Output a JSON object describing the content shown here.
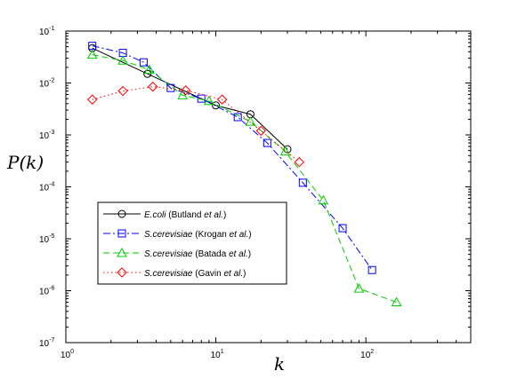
{
  "chart_data": {
    "type": "line",
    "xscale": "log",
    "yscale": "log",
    "xlim": [
      1,
      500
    ],
    "ylim": [
      1e-07,
      0.1
    ],
    "grid": false,
    "legend_position": "lower-left",
    "xlabel": "k",
    "ylabel": "P(k)",
    "x_ticks": [
      {
        "value": 1,
        "base": "10",
        "exp": "0"
      },
      {
        "value": 10,
        "base": "10",
        "exp": "1"
      },
      {
        "value": 100,
        "base": "10",
        "exp": "2"
      }
    ],
    "y_ticks": [
      {
        "value": 1e-07,
        "base": "10",
        "exp": "-7"
      },
      {
        "value": 1e-06,
        "base": "10",
        "exp": "-6"
      },
      {
        "value": 1e-05,
        "base": "10",
        "exp": "-5"
      },
      {
        "value": 0.0001,
        "base": "10",
        "exp": "-4"
      },
      {
        "value": 0.001,
        "base": "10",
        "exp": "-3"
      },
      {
        "value": 0.01,
        "base": "10",
        "exp": "-2"
      },
      {
        "value": 0.1,
        "base": "10",
        "exp": "-1"
      }
    ],
    "series": [
      {
        "legend": {
          "organism": "E.coli",
          "source": "(Butland",
          "etal": "et al.",
          "close": ")"
        },
        "color": "#000000",
        "marker": "circle",
        "dash": "",
        "x": [
          1.5,
          3.5,
          10,
          17,
          30
        ],
        "y": [
          0.047,
          0.015,
          0.0037,
          0.0025,
          0.00053
        ]
      },
      {
        "legend": {
          "organism": "S.cerevisiae",
          "source": "(Krogan",
          "etal": "et al.",
          "close": ")"
        },
        "color": "#0000ff",
        "marker": "square",
        "dash": "8,3,2,3",
        "x": [
          1.5,
          2.4,
          3.3,
          5.0,
          8.0,
          14,
          22,
          38,
          70,
          110
        ],
        "y": [
          0.052,
          0.038,
          0.025,
          0.008,
          0.005,
          0.0022,
          0.0007,
          0.00012,
          1.6e-05,
          2.5e-06
        ]
      },
      {
        "legend": {
          "organism": "S.cerevisiae",
          "source": "(Batada",
          "etal": "et al.",
          "close": ")"
        },
        "color": "#00cc00",
        "marker": "triangle",
        "dash": "7,4",
        "x": [
          1.5,
          2.4,
          3.6,
          6.0,
          9.0,
          17,
          29,
          52,
          90,
          160
        ],
        "y": [
          0.035,
          0.027,
          0.018,
          0.0058,
          0.0045,
          0.0018,
          0.00048,
          5.5e-05,
          1.1e-06,
          6e-07
        ]
      },
      {
        "legend": {
          "organism": "S.cerevisiae",
          "source": "(Gavin ",
          "etal": "et al.",
          "close": ")"
        },
        "color": "#ff0000",
        "marker": "diamond",
        "dash": "1.5,3",
        "x": [
          1.5,
          2.4,
          3.8,
          6.3,
          11,
          20,
          36
        ],
        "y": [
          0.0048,
          0.007,
          0.0085,
          0.0072,
          0.0048,
          0.0012,
          0.0003
        ]
      }
    ]
  }
}
